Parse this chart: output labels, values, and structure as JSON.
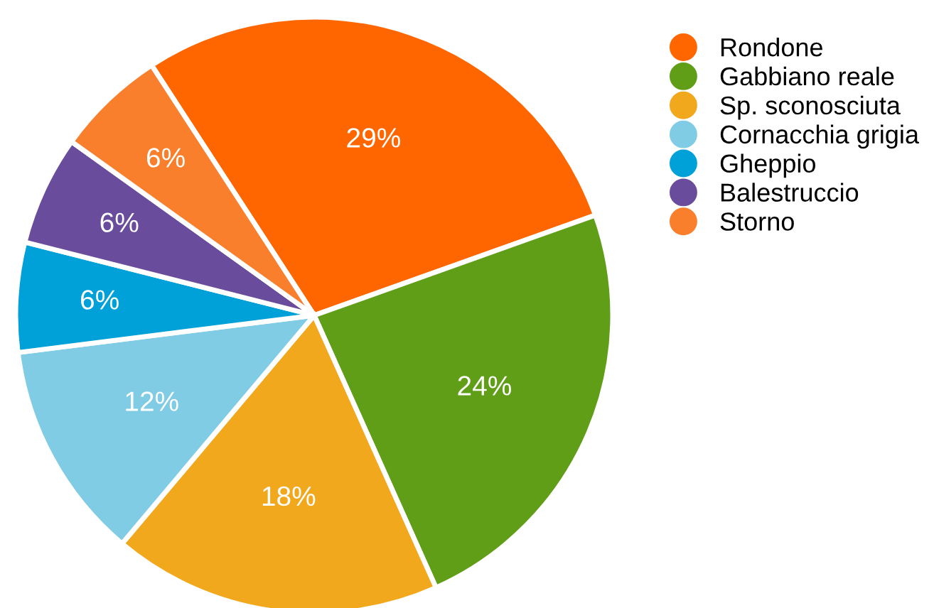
{
  "chart_data": {
    "type": "pie",
    "categories": [
      "Rondone",
      "Gabbiano reale",
      "Sp. sconosciuta",
      "Cornacchia grigia",
      "Gheppio",
      "Balestruccio",
      "Storno"
    ],
    "values": [
      29,
      24,
      18,
      12,
      6,
      6,
      6
    ],
    "colors": [
      "#ff6600",
      "#5f9e16",
      "#f2a81d",
      "#80cce4",
      "#00a0d8",
      "#6a4c9c",
      "#f97f2c"
    ],
    "value_labels": [
      "29%",
      "24%",
      "18%",
      "12%",
      "6%",
      "6%",
      "6%"
    ],
    "legend": "top right"
  }
}
